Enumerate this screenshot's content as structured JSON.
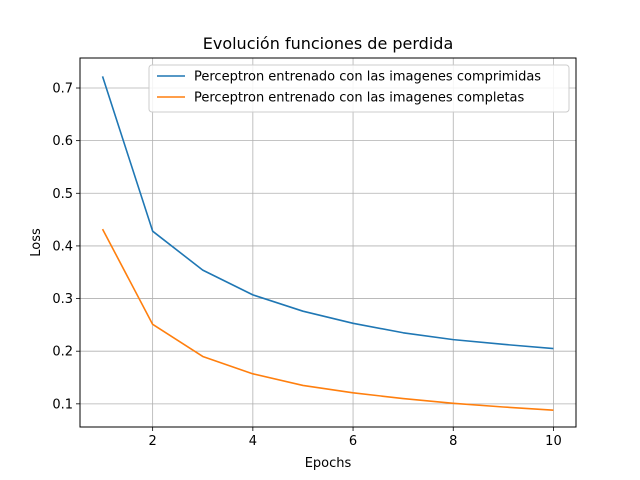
{
  "chart_data": {
    "type": "line",
    "title": "Evolución funciones de perdida",
    "xlabel": "Epochs",
    "ylabel": "Loss",
    "xlim": [
      0.55,
      10.45
    ],
    "ylim": [
      0.056,
      0.757
    ],
    "xticks": [
      2,
      4,
      6,
      8,
      10
    ],
    "yticks": [
      0.1,
      0.2,
      0.3,
      0.4,
      0.5,
      0.6,
      0.7
    ],
    "grid": true,
    "legend_position": "top-right",
    "x": [
      1,
      2,
      3,
      4,
      5,
      6,
      7,
      8,
      9,
      10
    ],
    "series": [
      {
        "name": "Perceptron entrenado con las imagenes comprimidas",
        "color": "#1f77b4",
        "values": [
          0.722,
          0.428,
          0.354,
          0.307,
          0.276,
          0.253,
          0.235,
          0.222,
          0.213,
          0.205
        ]
      },
      {
        "name": "Perceptron entrenado con las imagenes completas",
        "color": "#ff7f0e",
        "values": [
          0.432,
          0.251,
          0.19,
          0.157,
          0.135,
          0.121,
          0.11,
          0.101,
          0.094,
          0.088
        ]
      }
    ]
  }
}
